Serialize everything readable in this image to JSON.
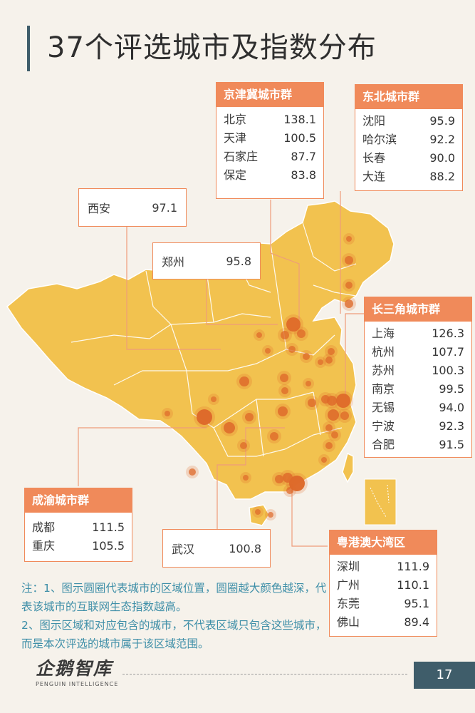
{
  "page": {
    "title": "37个评选城市及指数分布",
    "page_number": "17"
  },
  "colors": {
    "land": "#f2c24f",
    "land_edge": "#ffffff",
    "accent": "#f08a5a",
    "leader_line": "#ee9d7a",
    "dot": "#de6a2a",
    "note_text": "#3f8fa8",
    "footer_box": "#3f5d6a"
  },
  "clusters": {
    "jingjinji": {
      "name": "京津冀城市群",
      "cities": [
        {
          "city": "北京",
          "value": "138.1"
        },
        {
          "city": "天津",
          "value": "100.5"
        },
        {
          "city": "石家庄",
          "value": "87.7"
        },
        {
          "city": "保定",
          "value": "83.8"
        }
      ]
    },
    "dongbei": {
      "name": "东北城市群",
      "cities": [
        {
          "city": "沈阳",
          "value": "95.9"
        },
        {
          "city": "哈尔滨",
          "value": "92.2"
        },
        {
          "city": "长春",
          "value": "90.0"
        },
        {
          "city": "大连",
          "value": "88.2"
        }
      ]
    },
    "changsanjiao": {
      "name": "长三角城市群",
      "cities": [
        {
          "city": "上海",
          "value": "126.3"
        },
        {
          "city": "杭州",
          "value": "107.7"
        },
        {
          "city": "苏州",
          "value": "100.3"
        },
        {
          "city": "南京",
          "value": "99.5"
        },
        {
          "city": "无锡",
          "value": "94.0"
        },
        {
          "city": "宁波",
          "value": "92.3"
        },
        {
          "city": "合肥",
          "value": "91.5"
        }
      ]
    },
    "chengyu": {
      "name": "成渝城市群",
      "cities": [
        {
          "city": "成都",
          "value": "111.5"
        },
        {
          "city": "重庆",
          "value": "105.5"
        }
      ]
    },
    "yuegangao": {
      "name": "粤港澳大湾区",
      "cities": [
        {
          "city": "深圳",
          "value": "111.9"
        },
        {
          "city": "广州",
          "value": "110.1"
        },
        {
          "city": "东莞",
          "value": "95.1"
        },
        {
          "city": "佛山",
          "value": "89.4"
        }
      ]
    }
  },
  "singles": {
    "xian": {
      "city": "西安",
      "value": "97.1"
    },
    "zhengzhou": {
      "city": "郑州",
      "value": "95.8"
    },
    "wuhan": {
      "city": "武汉",
      "value": "100.8"
    }
  },
  "note": {
    "line1": "注：1、图示圆圈代表城市的区域位置，圆圈越大颜色越深，代表该城市的互联网生态指数越高。",
    "line2": "2、图示区域和对应包含的城市，不代表区域只包含这些城市，而是本次评选的城市属于该区域范围。"
  },
  "logo": {
    "name": "企鹅智库",
    "subtitle": "PENGUIN INTELLIGENCE"
  }
}
